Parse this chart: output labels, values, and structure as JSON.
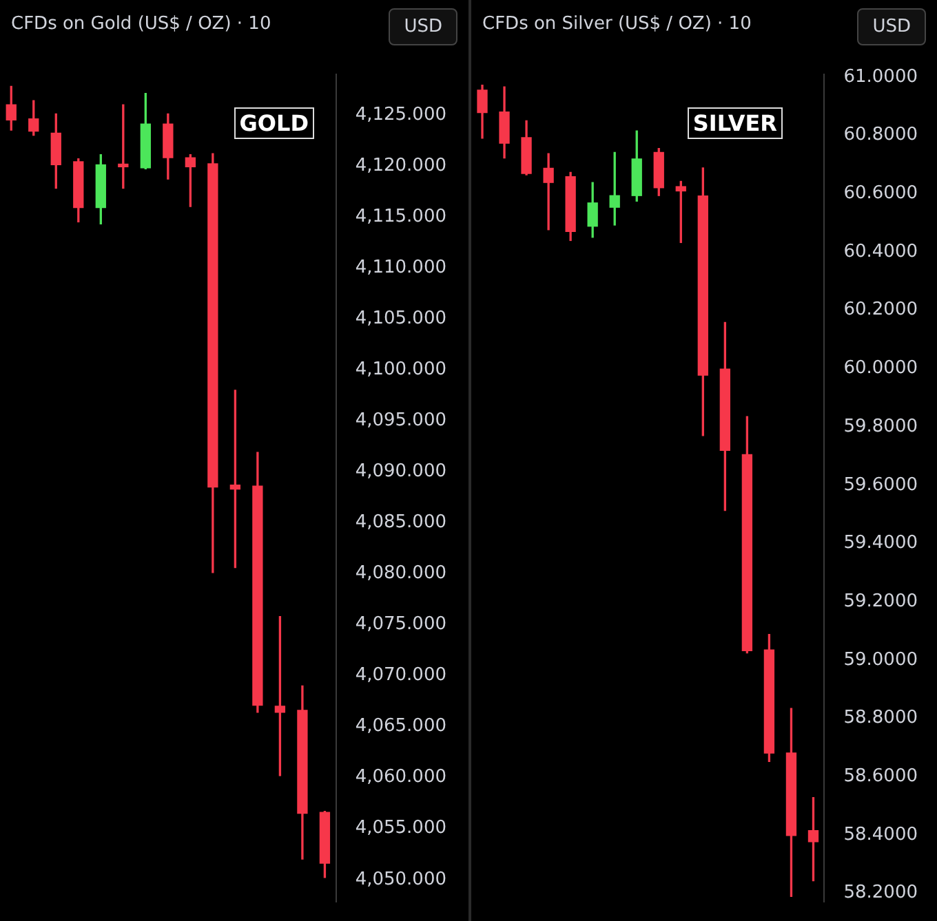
{
  "chart_data": [
    {
      "type": "candlestick",
      "title": "CFDs on Gold (US$ / OZ) · 10",
      "annotations": [
        "USD",
        "GOLD"
      ],
      "categories": [
        null,
        null,
        null,
        null,
        null,
        null,
        null,
        null,
        null,
        null,
        null,
        null,
        null,
        null,
        null
      ],
      "ohlc": [
        [
          4126.0,
          4127.8,
          4123.5,
          4124.5
        ],
        [
          4124.6,
          4126.4,
          4123.0,
          4123.4
        ],
        [
          4123.2,
          4125.1,
          4117.8,
          4120.1
        ],
        [
          4120.4,
          4120.7,
          4114.5,
          4115.9
        ],
        [
          4115.9,
          4121.1,
          4114.3,
          4120.1
        ],
        [
          4120.0,
          4126.0,
          4117.8,
          4119.9
        ],
        [
          4119.8,
          4127.1,
          4119.7,
          4124.1
        ],
        [
          4124.1,
          4125.1,
          4118.7,
          4120.8
        ],
        [
          4120.8,
          4121.1,
          4116.0,
          4119.9
        ],
        [
          4120.2,
          4121.2,
          4080.1,
          4088.5
        ],
        [
          4088.7,
          4098.0,
          4080.6,
          4088.3
        ],
        [
          4088.6,
          4091.9,
          4066.4,
          4067.1
        ],
        [
          4067.0,
          4075.8,
          4060.2,
          4066.4
        ],
        [
          4066.6,
          4069.0,
          4052.0,
          4056.5
        ],
        [
          4056.6,
          4056.7,
          4050.2,
          4051.6
        ]
      ],
      "colors": [
        "#f7374a",
        "#f7374a",
        "#f7374a",
        "#f7374a",
        "#4ce65a",
        "#f7374a",
        "#4ce65a",
        "#f7374a",
        "#f7374a",
        "#f7374a",
        "#f7374a",
        "#f7374a",
        "#f7374a",
        "#f7374a",
        "#f7374a"
      ],
      "ylim": [
        4047.8,
        4129.0
      ],
      "yticks": [
        {
          "value": 4050,
          "label": "4,050.000"
        },
        {
          "value": 4055,
          "label": "4,055.000"
        },
        {
          "value": 4060,
          "label": "4,060.000"
        },
        {
          "value": 4065,
          "label": "4,065.000"
        },
        {
          "value": 4070,
          "label": "4,070.000"
        },
        {
          "value": 4075,
          "label": "4,075.000"
        },
        {
          "value": 4080,
          "label": "4,080.000"
        },
        {
          "value": 4085,
          "label": "4,085.000"
        },
        {
          "value": 4090,
          "label": "4,090.000"
        },
        {
          "value": 4095,
          "label": "4,095.000"
        },
        {
          "value": 4100,
          "label": "4,100.000"
        },
        {
          "value": 4105,
          "label": "4,105.000"
        },
        {
          "value": 4110,
          "label": "4,110.000"
        },
        {
          "value": 4115,
          "label": "4,115.000"
        },
        {
          "value": 4120,
          "label": "4,120.000"
        },
        {
          "value": 4125,
          "label": "4,125.000"
        }
      ],
      "tick_labels": "y",
      "grid": false,
      "legend": false
    },
    {
      "type": "candlestick",
      "title": "CFDs on Silver (US$ / OZ) · 10",
      "annotations": [
        "USD",
        "SILVER"
      ],
      "categories": [
        null,
        null,
        null,
        null,
        null,
        null,
        null,
        null,
        null,
        null,
        null,
        null,
        null,
        null,
        null,
        null
      ],
      "ohlc": [
        [
          60.955,
          60.972,
          60.79,
          60.878
        ],
        [
          60.88,
          60.966,
          60.722,
          60.773
        ],
        [
          60.792,
          60.85,
          60.664,
          60.669
        ],
        [
          60.687,
          60.737,
          60.476,
          60.638
        ],
        [
          60.658,
          60.673,
          60.439,
          60.47
        ],
        [
          60.488,
          60.638,
          60.45,
          60.568
        ],
        [
          60.553,
          60.741,
          60.492,
          60.593
        ],
        [
          60.593,
          60.815,
          60.574,
          60.719
        ],
        [
          60.741,
          60.755,
          60.593,
          60.62
        ],
        [
          60.624,
          60.642,
          60.432,
          60.609
        ],
        [
          60.592,
          60.688,
          59.77,
          59.977
        ],
        [
          59.998,
          60.158,
          59.513,
          59.719
        ],
        [
          59.705,
          59.835,
          59.024,
          59.032
        ],
        [
          59.035,
          59.088,
          58.652,
          58.681
        ],
        [
          58.681,
          58.834,
          58.189,
          58.398
        ],
        [
          58.415,
          58.528,
          58.243,
          58.377
        ]
      ],
      "colors": [
        "#f7374a",
        "#f7374a",
        "#f7374a",
        "#f7374a",
        "#f7374a",
        "#4ce65a",
        "#4ce65a",
        "#4ce65a",
        "#f7374a",
        "#f7374a",
        "#f7374a",
        "#f7374a",
        "#f7374a",
        "#f7374a",
        "#f7374a",
        "#f7374a"
      ],
      "ylim": [
        58.17,
        61.01
      ],
      "yticks": [
        {
          "value": 58.2,
          "label": "58.2000"
        },
        {
          "value": 58.4,
          "label": "58.4000"
        },
        {
          "value": 58.6,
          "label": "58.6000"
        },
        {
          "value": 58.8,
          "label": "58.8000"
        },
        {
          "value": 59.0,
          "label": "59.0000"
        },
        {
          "value": 59.2,
          "label": "59.2000"
        },
        {
          "value": 59.4,
          "label": "59.4000"
        },
        {
          "value": 59.6,
          "label": "59.6000"
        },
        {
          "value": 59.8,
          "label": "59.8000"
        },
        {
          "value": 60.0,
          "label": "60.0000"
        },
        {
          "value": 60.2,
          "label": "60.2000"
        },
        {
          "value": 60.4,
          "label": "60.4000"
        },
        {
          "value": 60.6,
          "label": "60.6000"
        },
        {
          "value": 60.8,
          "label": "60.8000"
        },
        {
          "value": 61.0,
          "label": "61.0000"
        }
      ],
      "tick_labels": "y",
      "grid": false,
      "legend": false
    }
  ]
}
